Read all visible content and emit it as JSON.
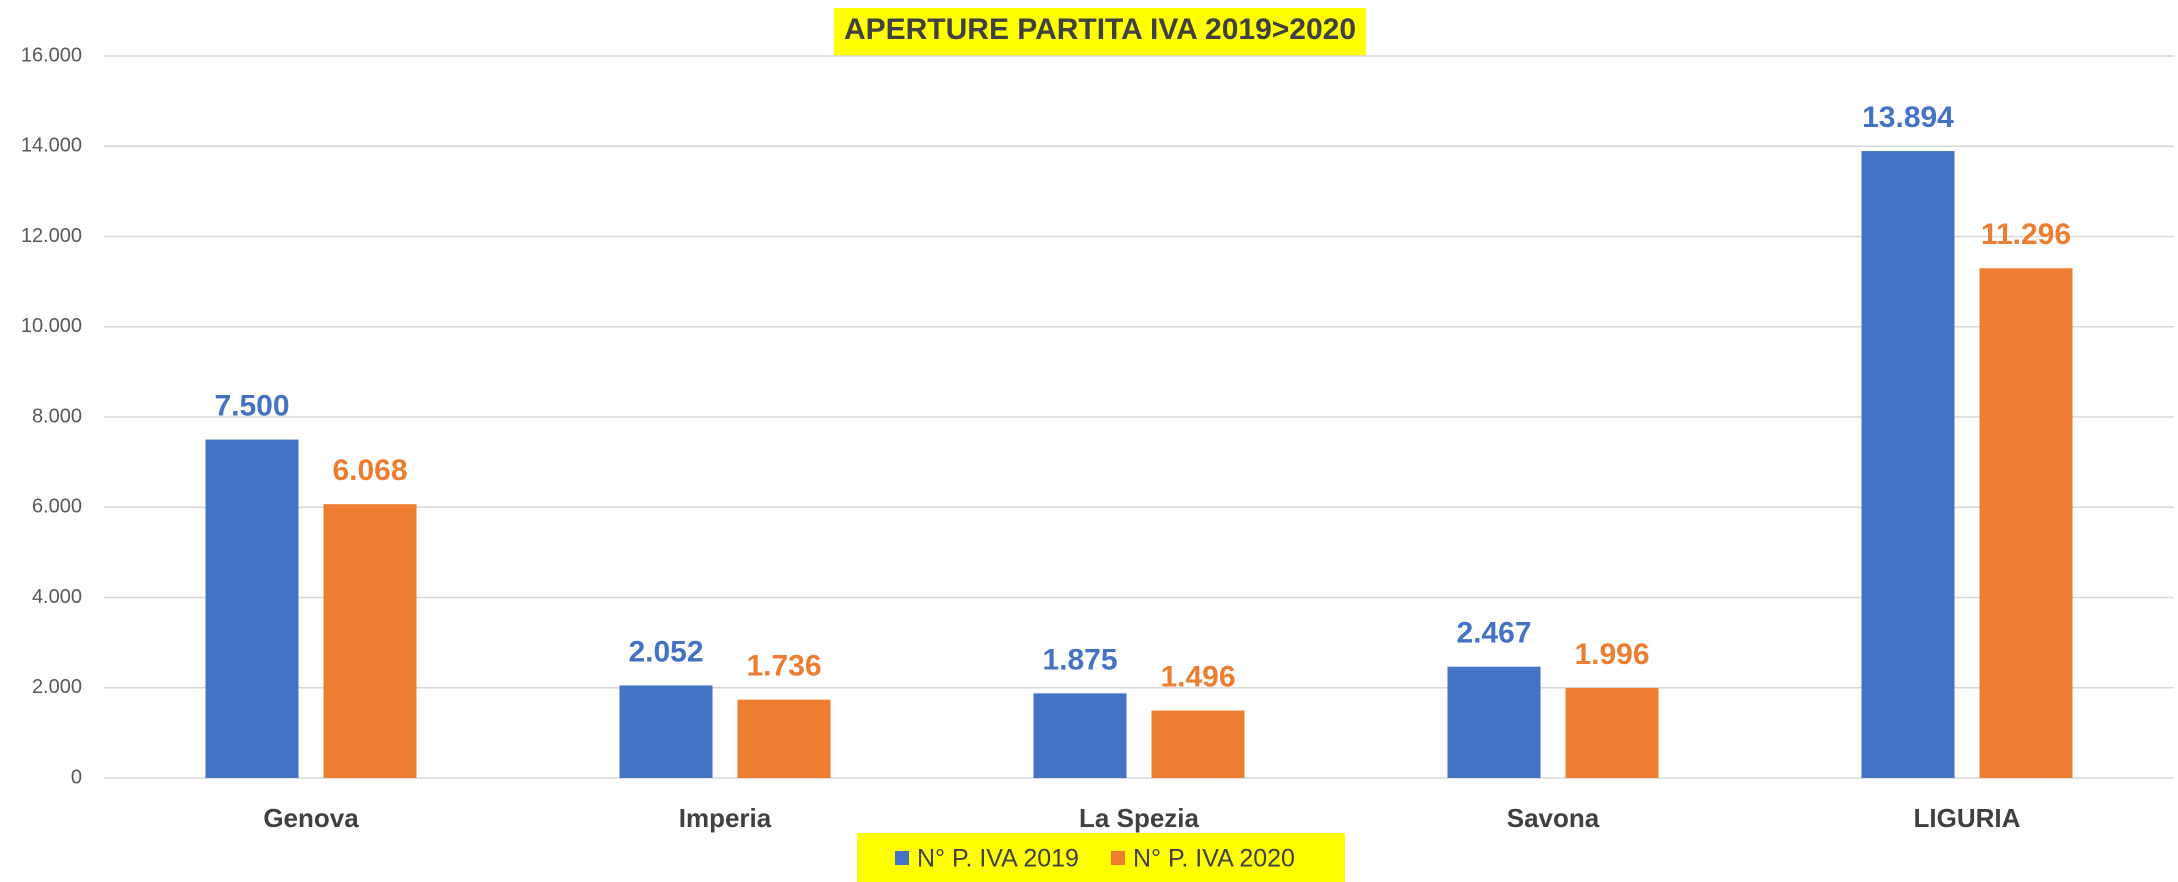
{
  "chart_data": {
    "type": "bar",
    "title": "APERTURE PARTITA IVA 2019>2020",
    "categories": [
      "Genova",
      "Imperia",
      "La Spezia",
      "Savona",
      "LIGURIA"
    ],
    "series": [
      {
        "name": "N° P. IVA 2019",
        "color": "#4472c4",
        "values": [
          7500,
          2052,
          1875,
          2467,
          13894
        ],
        "value_labels": [
          "7.500",
          "2.052",
          "1.875",
          "2.467",
          "13.894"
        ]
      },
      {
        "name": "N° P. IVA 2020",
        "color": "#ed7d31",
        "values": [
          6068,
          1736,
          1496,
          1996,
          11296
        ],
        "value_labels": [
          "6.068",
          "1.736",
          "1.496",
          "1.996",
          "11.296"
        ]
      }
    ],
    "ylim": [
      0,
      16000
    ],
    "yticks": [
      0,
      {
        "value": 2000,
        "label": "2.000"
      },
      {
        "value": 4000,
        "label": "4.000"
      },
      {
        "value": 6000,
        "label": "6.000"
      },
      {
        "value": 8000,
        "label": "8.000"
      },
      {
        "value": 10000,
        "label": "10.000"
      },
      {
        "value": 12000,
        "label": "12.000"
      },
      {
        "value": 14000,
        "label": "14.000"
      },
      {
        "value": 16000,
        "label": "16.000"
      }
    ],
    "grid": true,
    "legend": "bottom"
  }
}
